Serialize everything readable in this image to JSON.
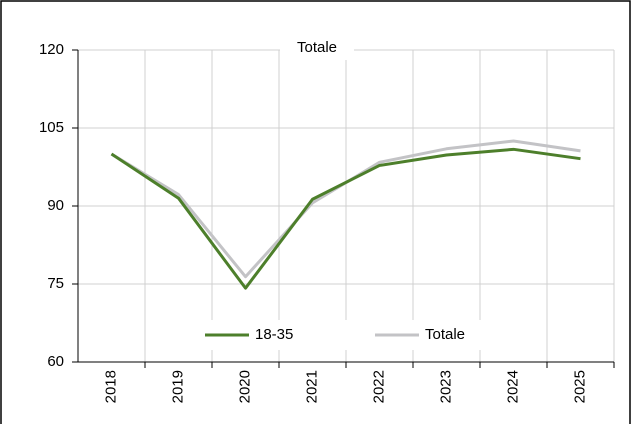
{
  "chart_data": {
    "type": "line",
    "title": "Totale",
    "categories": [
      "2018",
      "2019",
      "2020",
      "2021",
      "2022",
      "2023",
      "2024",
      "2025"
    ],
    "series": [
      {
        "name": "18-35",
        "color": "#4d7f2b",
        "values": [
          100,
          91.5,
          74.2,
          91.3,
          97.8,
          99.8,
          100.9,
          99.1
        ]
      },
      {
        "name": "Totale",
        "color": "#c3c3c6",
        "values": [
          100,
          92.2,
          76.4,
          90.6,
          98.4,
          101,
          102.5,
          100.6
        ]
      }
    ],
    "ylim": [
      60,
      120
    ],
    "yticks": [
      60,
      75,
      90,
      105,
      120
    ],
    "grid": true,
    "legend": "bottom"
  }
}
